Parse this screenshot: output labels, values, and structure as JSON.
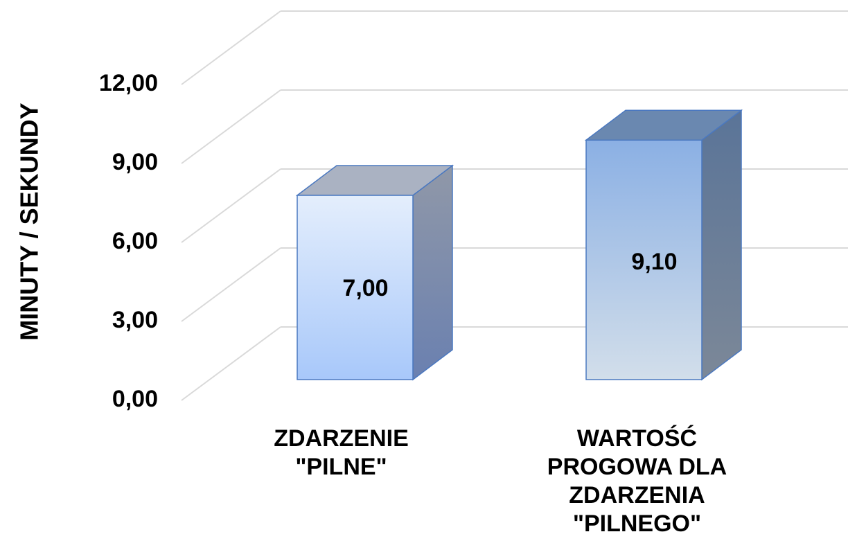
{
  "chart_data": {
    "type": "bar3d",
    "y_axis_label": "MINUTY / SEKUNDY",
    "categories": [
      "ZDARZENIE\n\"PILNE\"",
      "WARTOŚĆ\nPROGOWA DLA\nZDARZENIA\n\"PILNEGO\""
    ],
    "values": [
      7.0,
      9.1
    ],
    "value_labels": [
      "7,00",
      "9,10"
    ],
    "colors": [
      "#c6dcfa",
      "#a2bde2"
    ],
    "ylim": [
      0,
      12
    ],
    "yticks": [
      {
        "value": 0,
        "label": "0,00"
      },
      {
        "value": 3,
        "label": "3,00"
      },
      {
        "value": 6,
        "label": "6,00"
      },
      {
        "value": 9,
        "label": "9,00"
      },
      {
        "value": 12,
        "label": "12,00"
      }
    ],
    "grid": true
  }
}
